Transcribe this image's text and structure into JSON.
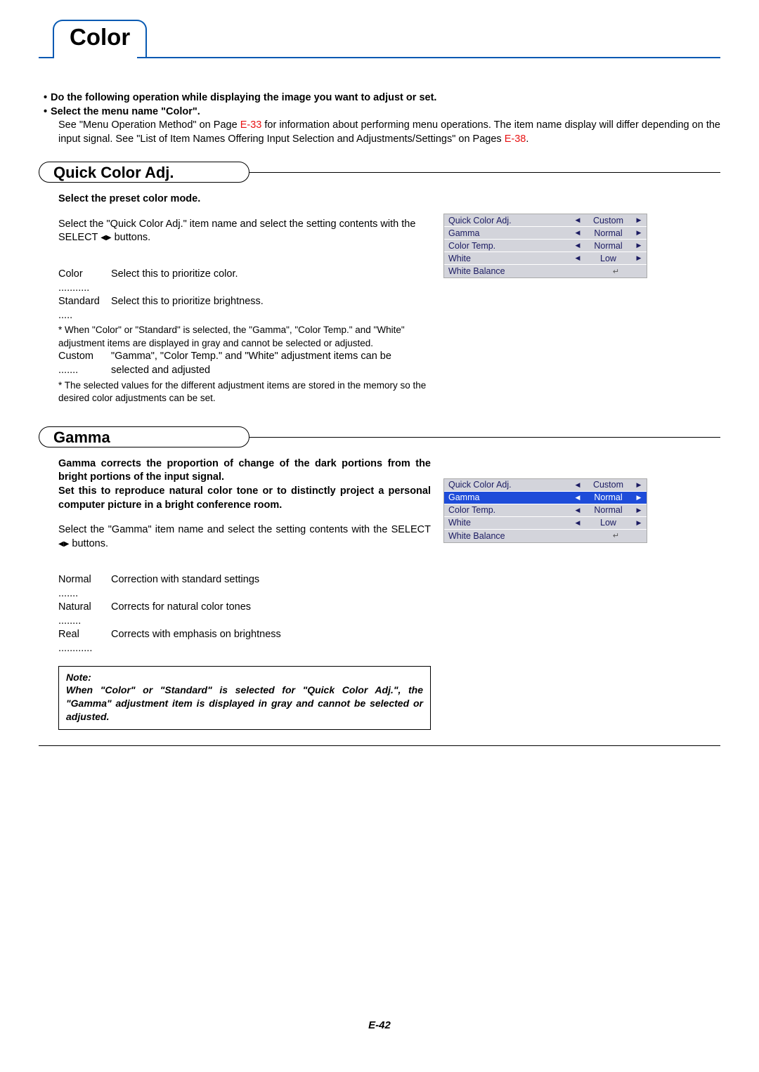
{
  "title": "Color",
  "intro": {
    "bullet1": "Do the following operation while displaying the image you want to adjust or set.",
    "bullet2": "Select the menu name \"Color\".",
    "desc1": "See \"Menu Operation Method\" on Page ",
    "link1": "E-33",
    "desc2": " for information about performing menu operations. The item name display will differ depending on the input signal. See \"List of Item Names Offering Input Selection and Adjustments/Settings\" on Pages ",
    "link2": "E-38",
    "desc3": "."
  },
  "section1": {
    "heading": "Quick Color Adj.",
    "sub": "Select the preset color mode.",
    "para1a": "Select the \"Quick Color Adj.\" item name and select the setting contents with the SELECT ",
    "para1b": " buttons.",
    "d1_term": "Color",
    "d1_val": "Select this to prioritize color.",
    "d2_term": "Standard",
    "d2_val": "Select this to prioritize brightness.",
    "note1": "* When \"Color\" or \"Standard\" is selected, the \"Gamma\", \"Color Temp.\" and \"White\" adjustment items are displayed in gray and cannot be selected or adjusted.",
    "d3_term": "Custom",
    "d3_val": "\"Gamma\", \"Color Temp.\" and \"White\" adjustment items can be selected and adjusted",
    "note2": "* The selected values for the different adjustment items are stored in the memory so the desired color adjustments can be set.",
    "menu": {
      "rows": [
        {
          "label": "Quick Color Adj.",
          "value": "Custom",
          "sel": false
        },
        {
          "label": "Gamma",
          "value": "Normal",
          "sel": false
        },
        {
          "label": "Color Temp.",
          "value": "Normal",
          "sel": false
        },
        {
          "label": "White",
          "value": "Low",
          "sel": false
        },
        {
          "label": "White Balance",
          "value": "__enter__",
          "sel": false
        }
      ]
    }
  },
  "section2": {
    "heading": "Gamma",
    "sub1": "Gamma corrects the proportion of change of the dark portions from the bright portions of the input signal.",
    "sub2": "Set this to reproduce natural color tone or to distinctly project a personal computer picture in a bright conference room.",
    "para1a": "Select the \"Gamma\" item name and select the setting contents with the SELECT ",
    "para1b": " buttons.",
    "d1_term": "Normal",
    "d1_val": "Correction with standard settings",
    "d2_term": "Natural",
    "d2_val": "Corrects for natural color tones",
    "d3_term": "Real",
    "d3_val": "Corrects with emphasis on brightness",
    "note_title": "Note:",
    "note_body": "When \"Color\" or \"Standard\" is selected for \"Quick Color Adj.\", the \"Gamma\" adjustment item is displayed in gray and cannot be selected or adjusted.",
    "menu": {
      "rows": [
        {
          "label": "Quick Color Adj.",
          "value": "Custom",
          "sel": false
        },
        {
          "label": "Gamma",
          "value": "Normal",
          "sel": true
        },
        {
          "label": "Color Temp.",
          "value": "Normal",
          "sel": false
        },
        {
          "label": "White",
          "value": "Low",
          "sel": false
        },
        {
          "label": "White Balance",
          "value": "__enter__",
          "sel": false
        }
      ]
    }
  },
  "page_number": "E-42"
}
